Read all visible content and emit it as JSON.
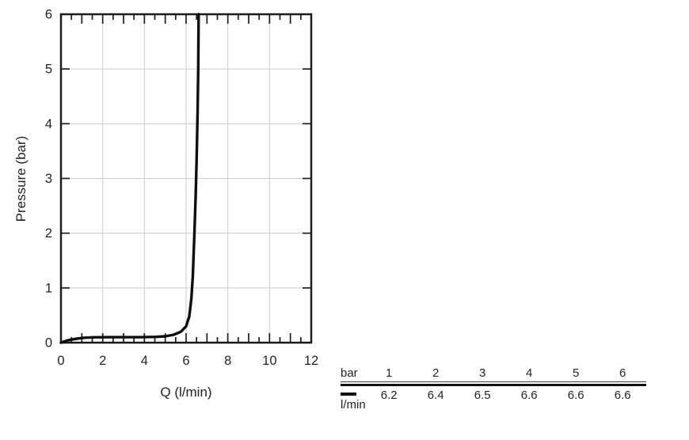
{
  "chart_data": {
    "type": "line",
    "title": "",
    "xlabel": "Q (l/min)",
    "ylabel": "Pressure (bar)",
    "xlim": [
      0,
      12
    ],
    "ylim": [
      0,
      6
    ],
    "x_tick_labels": [
      "0",
      "2",
      "4",
      "6",
      "8",
      "10",
      "12"
    ],
    "y_tick_labels": [
      "0",
      "1",
      "2",
      "3",
      "4",
      "5",
      "6"
    ],
    "x_label_step": 2,
    "x_major_tick_step": 1,
    "x_minor_tick_step": 0.5,
    "y_major_tick_step": 1,
    "x_gridlines": [
      2,
      4,
      6,
      8,
      10
    ],
    "y_gridlines": [
      1,
      2,
      3,
      4,
      5
    ],
    "grid": true,
    "legend_position": "bottom-right-table",
    "colors": {
      "axis": "#1c1c1c",
      "grid": "#cccccc",
      "curve": "#0e0e0e",
      "text": "#242424"
    },
    "series": [
      {
        "name": "l/min",
        "points": [
          [
            0,
            0
          ],
          [
            0.3,
            0.04
          ],
          [
            0.7,
            0.07
          ],
          [
            1.1,
            0.09
          ],
          [
            1.6,
            0.098
          ],
          [
            2.2,
            0.1
          ],
          [
            3.0,
            0.1
          ],
          [
            3.8,
            0.1
          ],
          [
            4.5,
            0.105
          ],
          [
            5.0,
            0.115
          ],
          [
            5.4,
            0.145
          ],
          [
            5.75,
            0.2
          ],
          [
            6.0,
            0.3
          ],
          [
            6.15,
            0.48
          ],
          [
            6.25,
            0.8
          ],
          [
            6.32,
            1.2
          ],
          [
            6.4,
            2.0
          ],
          [
            6.46,
            2.7
          ],
          [
            6.5,
            3.3
          ],
          [
            6.55,
            4.2
          ],
          [
            6.58,
            5.0
          ],
          [
            6.6,
            6.0
          ]
        ]
      }
    ],
    "legend_table": {
      "header_label": "bar",
      "header_values": [
        "1",
        "2",
        "3",
        "4",
        "5",
        "6"
      ],
      "series_label": "l/min",
      "series_values": [
        "6.2",
        "6.4",
        "6.5",
        "6.6",
        "6.6",
        "6.6"
      ]
    }
  }
}
